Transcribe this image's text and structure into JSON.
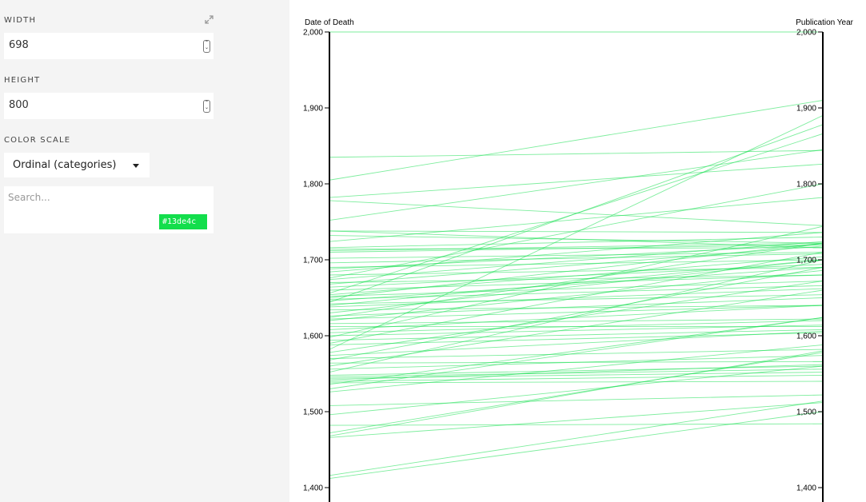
{
  "sidebar": {
    "width_label": "WIDTH",
    "width_value": "698",
    "height_label": "HEIGHT",
    "height_value": "800",
    "color_scale_label": "COLOR SCALE",
    "color_scale_value": "Ordinal (categories)",
    "search_placeholder": "Search...",
    "color_swatch": "#13de4c",
    "icons": {
      "expand": "expand-arrows-icon",
      "stepper": "up-down-stepper-icon",
      "dropdown": "caret-down-icon"
    }
  },
  "chart_data": {
    "type": "parallel-coordinates",
    "axes": [
      {
        "label": "Date of Death",
        "ticks": [
          "1,400",
          "1,500",
          "1,600",
          "1,700",
          "1,800",
          "1,900",
          "2,000"
        ]
      },
      {
        "label": "Publication Year",
        "ticks": [
          "1,400",
          "1,500",
          "1,600",
          "1,700",
          "1,800",
          "1,900",
          "2,000"
        ]
      }
    ],
    "ylim": [
      1400,
      2000
    ],
    "line_color": "#13de4c",
    "lines": [
      [
        2000,
        2000
      ],
      [
        1835,
        1844
      ],
      [
        1805,
        1910
      ],
      [
        1782,
        1826
      ],
      [
        1778,
        1745
      ],
      [
        1752,
        1845
      ],
      [
        1738,
        1736
      ],
      [
        1738,
        1716
      ],
      [
        1732,
        1722
      ],
      [
        1724,
        1782
      ],
      [
        1716,
        1730
      ],
      [
        1714,
        1716
      ],
      [
        1712,
        1722
      ],
      [
        1710,
        1720
      ],
      [
        1702,
        1710
      ],
      [
        1696,
        1708
      ],
      [
        1690,
        1700
      ],
      [
        1688,
        1720
      ],
      [
        1684,
        1736
      ],
      [
        1680,
        1690
      ],
      [
        1676,
        1800
      ],
      [
        1674,
        1724
      ],
      [
        1670,
        1680
      ],
      [
        1668,
        1718
      ],
      [
        1664,
        1694
      ],
      [
        1660,
        1680
      ],
      [
        1656,
        1866
      ],
      [
        1654,
        1704
      ],
      [
        1652,
        1672
      ],
      [
        1650,
        1722
      ],
      [
        1648,
        1666
      ],
      [
        1646,
        1690
      ],
      [
        1644,
        1878
      ],
      [
        1642,
        1654
      ],
      [
        1640,
        1700
      ],
      [
        1638,
        1662
      ],
      [
        1634,
        1640
      ],
      [
        1630,
        1700
      ],
      [
        1626,
        1650
      ],
      [
        1624,
        1722
      ],
      [
        1622,
        1640
      ],
      [
        1620,
        1686
      ],
      [
        1616,
        1622
      ],
      [
        1612,
        1612
      ],
      [
        1608,
        1640
      ],
      [
        1604,
        1620
      ],
      [
        1600,
        1614
      ],
      [
        1598,
        1744
      ],
      [
        1594,
        1608
      ],
      [
        1590,
        1710
      ],
      [
        1588,
        1604
      ],
      [
        1582,
        1890
      ],
      [
        1578,
        1672
      ],
      [
        1574,
        1606
      ],
      [
        1570,
        1582
      ],
      [
        1568,
        1690
      ],
      [
        1564,
        1566
      ],
      [
        1560,
        1660
      ],
      [
        1556,
        1574
      ],
      [
        1552,
        1700
      ],
      [
        1548,
        1560
      ],
      [
        1546,
        1556
      ],
      [
        1544,
        1552
      ],
      [
        1542,
        1562
      ],
      [
        1540,
        1548
      ],
      [
        1538,
        1540
      ],
      [
        1536,
        1624
      ],
      [
        1530,
        1624
      ],
      [
        1526,
        1588
      ],
      [
        1508,
        1522
      ],
      [
        1496,
        1560
      ],
      [
        1482,
        1484
      ],
      [
        1472,
        1578
      ],
      [
        1468,
        1580
      ],
      [
        1466,
        1512
      ],
      [
        1416,
        1514
      ],
      [
        1412,
        1500
      ]
    ]
  }
}
